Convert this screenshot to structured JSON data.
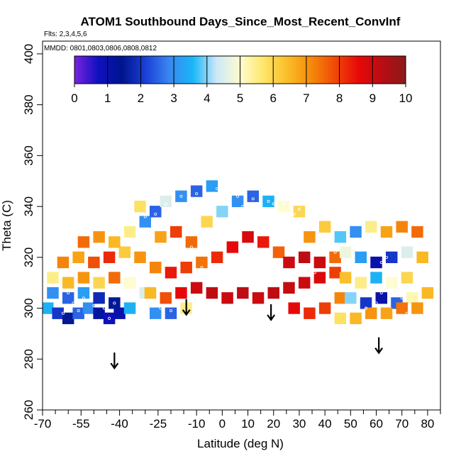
{
  "chart_data": {
    "type": "heatmap",
    "title": "ATOM1 Southbound Days_Since_Most_Recent_ConvInf",
    "subtitle_flights": "Flts: 2,3,4,5,6",
    "subtitle_dates": "MMDD: 0801,0803,0806,0808,0812",
    "xlabel": "Latitude (deg N)",
    "ylabel": "Theta (C)",
    "xlim": [
      -70,
      85
    ],
    "ylim": [
      260,
      405
    ],
    "x_ticks": [
      -70,
      -55,
      -40,
      -25,
      -10,
      0,
      10,
      20,
      30,
      40,
      50,
      60,
      70,
      80
    ],
    "x_tick_labels": [
      "-70",
      "-55",
      "-40",
      "-25",
      "-10",
      "0",
      "10",
      "20",
      "30",
      "40",
      "50",
      "60",
      "70",
      "80"
    ],
    "x_minor_ticks": [
      -65,
      -60,
      -50,
      -45,
      -35,
      -30,
      -20,
      -15,
      -5,
      5,
      15,
      25,
      35,
      45,
      55,
      65,
      75,
      85
    ],
    "y_ticks": [
      260,
      280,
      300,
      320,
      340,
      360,
      380,
      400
    ],
    "y_tick_labels": [
      "260",
      "280",
      "300",
      "320",
      "340",
      "360",
      "380",
      "400"
    ],
    "colorbar": {
      "range": [
        0,
        10
      ],
      "tick_labels": [
        "0",
        "1",
        "2",
        "3",
        "4",
        "5",
        "6",
        "7",
        "8",
        "9",
        "10"
      ],
      "colors": [
        "#7b22e0",
        "#1010c0",
        "#00148c",
        "#1a3fd8",
        "#3a86f0",
        "#19b6f8",
        "#cde8f8",
        "#fefcd0",
        "#fde66a",
        "#fbbd28",
        "#f58a0a",
        "#f04a06",
        "#e80808",
        "#b80d14",
        "#8b1a1a"
      ]
    },
    "arrows": [
      {
        "lat": -42,
        "theta": 282
      },
      {
        "lat": -14,
        "theta": 303
      },
      {
        "lat": 19,
        "theta": 301
      },
      {
        "lat": 61,
        "theta": 288
      }
    ],
    "cells": [
      [
        -68,
        300,
        3.5
      ],
      [
        -64,
        298,
        2.0
      ],
      [
        -60,
        296,
        1.5
      ],
      [
        -56,
        298,
        2.5
      ],
      [
        -52,
        300,
        3.0
      ],
      [
        -48,
        298,
        1.2
      ],
      [
        -44,
        296,
        0.8
      ],
      [
        -40,
        298,
        1.0
      ],
      [
        -66,
        306,
        3.0
      ],
      [
        -60,
        304,
        2.5
      ],
      [
        -54,
        306,
        3.2
      ],
      [
        -48,
        304,
        1.8
      ],
      [
        -42,
        302,
        1.5
      ],
      [
        -36,
        300,
        3.5
      ],
      [
        -66,
        312,
        5.5
      ],
      [
        -60,
        310,
        6.5
      ],
      [
        -54,
        312,
        7.0
      ],
      [
        -48,
        310,
        6.0
      ],
      [
        -42,
        312,
        7.5
      ],
      [
        -36,
        310,
        5.0
      ],
      [
        -30,
        306,
        4.5
      ],
      [
        -62,
        318,
        7.2
      ],
      [
        -56,
        320,
        6.8
      ],
      [
        -50,
        318,
        7.8
      ],
      [
        -44,
        320,
        8.2
      ],
      [
        -38,
        322,
        6.2
      ],
      [
        -32,
        320,
        7.0
      ],
      [
        -54,
        326,
        7.5
      ],
      [
        -48,
        328,
        7.0
      ],
      [
        -42,
        326,
        6.5
      ],
      [
        -36,
        330,
        5.5
      ],
      [
        -30,
        334,
        3.0
      ],
      [
        -26,
        338,
        2.5
      ],
      [
        -32,
        340,
        5.8
      ],
      [
        -22,
        342,
        4.5
      ],
      [
        -16,
        344,
        3.0
      ],
      [
        -10,
        346,
        2.5
      ],
      [
        -4,
        348,
        3.2
      ],
      [
        -24,
        328,
        6.8
      ],
      [
        -18,
        330,
        8.0
      ],
      [
        -12,
        326,
        7.5
      ],
      [
        -6,
        334,
        6.0
      ],
      [
        0,
        338,
        4.0
      ],
      [
        6,
        342,
        3.0
      ],
      [
        12,
        344,
        2.5
      ],
      [
        18,
        342,
        3.5
      ],
      [
        24,
        340,
        5.0
      ],
      [
        30,
        338,
        6.0
      ],
      [
        -26,
        316,
        7.2
      ],
      [
        -20,
        314,
        8.4
      ],
      [
        -14,
        316,
        8.0
      ],
      [
        -8,
        318,
        7.4
      ],
      [
        -2,
        320,
        8.2
      ],
      [
        4,
        324,
        8.6
      ],
      [
        10,
        328,
        8.8
      ],
      [
        16,
        326,
        8.4
      ],
      [
        22,
        322,
        7.6
      ],
      [
        -28,
        306,
        6.5
      ],
      [
        -22,
        304,
        7.8
      ],
      [
        -16,
        306,
        8.6
      ],
      [
        -10,
        308,
        9.0
      ],
      [
        -4,
        306,
        9.2
      ],
      [
        2,
        304,
        9.0
      ],
      [
        8,
        306,
        9.2
      ],
      [
        14,
        304,
        9.0
      ],
      [
        20,
        306,
        9.2
      ],
      [
        26,
        308,
        9.1
      ],
      [
        32,
        310,
        9.0
      ],
      [
        38,
        312,
        8.8
      ],
      [
        44,
        314,
        8.0
      ],
      [
        -26,
        298,
        3.0
      ],
      [
        -20,
        298,
        2.5
      ],
      [
        -14,
        300,
        5.5
      ],
      [
        26,
        318,
        9.0
      ],
      [
        32,
        320,
        9.2
      ],
      [
        38,
        318,
        9.0
      ],
      [
        44,
        320,
        7.5
      ],
      [
        28,
        300,
        8.6
      ],
      [
        34,
        298,
        8.2
      ],
      [
        40,
        300,
        8.0
      ],
      [
        46,
        304,
        7.2
      ],
      [
        34,
        328,
        7.0
      ],
      [
        40,
        332,
        6.2
      ],
      [
        46,
        328,
        3.8
      ],
      [
        52,
        330,
        3.0
      ],
      [
        58,
        332,
        5.5
      ],
      [
        64,
        330,
        6.8
      ],
      [
        70,
        332,
        7.2
      ],
      [
        76,
        330,
        7.5
      ],
      [
        48,
        322,
        4.8
      ],
      [
        54,
        320,
        3.2
      ],
      [
        60,
        318,
        1.0
      ],
      [
        66,
        320,
        2.0
      ],
      [
        72,
        322,
        4.5
      ],
      [
        78,
        320,
        6.5
      ],
      [
        48,
        312,
        6.4
      ],
      [
        54,
        310,
        5.5
      ],
      [
        60,
        312,
        3.5
      ],
      [
        66,
        310,
        5.0
      ],
      [
        72,
        312,
        6.0
      ],
      [
        50,
        304,
        4.0
      ],
      [
        56,
        302,
        2.0
      ],
      [
        62,
        304,
        1.0
      ],
      [
        68,
        302,
        2.5
      ],
      [
        74,
        304,
        5.2
      ],
      [
        80,
        306,
        6.5
      ],
      [
        46,
        296,
        5.8
      ],
      [
        52,
        296,
        6.5
      ],
      [
        58,
        298,
        7.0
      ],
      [
        64,
        298,
        6.8
      ],
      [
        70,
        300,
        7.4
      ],
      [
        76,
        300,
        7.0
      ]
    ],
    "points": [
      [
        -64,
        303
      ],
      [
        -58,
        302
      ],
      [
        -54,
        304
      ],
      [
        -50,
        301
      ],
      [
        -46,
        300
      ],
      [
        -42,
        302
      ],
      [
        -62,
        298
      ],
      [
        -56,
        299
      ],
      [
        -52,
        297
      ],
      [
        -38,
        303
      ],
      [
        -44,
        296
      ],
      [
        -60,
        306
      ],
      [
        -40,
        305
      ],
      [
        -24,
        300
      ],
      [
        -20,
        299
      ],
      [
        -34,
        326
      ],
      [
        -30,
        336
      ],
      [
        -26,
        337
      ],
      [
        -22,
        341
      ],
      [
        -16,
        344
      ],
      [
        -10,
        345
      ],
      [
        -2,
        347
      ],
      [
        6,
        344
      ],
      [
        12,
        343
      ],
      [
        18,
        342
      ],
      [
        24,
        341
      ],
      [
        30,
        339
      ],
      [
        8,
        340
      ],
      [
        14,
        341
      ],
      [
        20,
        341
      ],
      [
        22,
        336
      ],
      [
        28,
        337
      ],
      [
        -12,
        324
      ],
      [
        -4,
        326
      ],
      [
        4,
        329
      ],
      [
        10,
        325
      ],
      [
        -8,
        316
      ],
      [
        2,
        318
      ],
      [
        18,
        316
      ],
      [
        30,
        316
      ],
      [
        36,
        314
      ],
      [
        40,
        324
      ],
      [
        44,
        322
      ],
      [
        50,
        326
      ],
      [
        54,
        327
      ],
      [
        58,
        329
      ],
      [
        62,
        318
      ],
      [
        64,
        320
      ],
      [
        66,
        314
      ],
      [
        58,
        308
      ],
      [
        62,
        306
      ],
      [
        66,
        308
      ],
      [
        70,
        304
      ],
      [
        68,
        296
      ],
      [
        72,
        298
      ],
      [
        56,
        300
      ],
      [
        60,
        302
      ]
    ]
  }
}
